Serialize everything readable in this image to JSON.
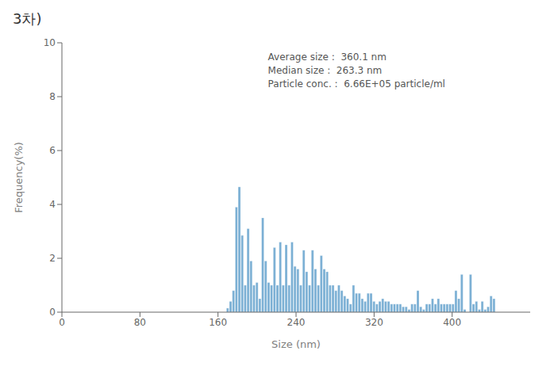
{
  "chart_data": {
    "type": "bar",
    "title": "3차)",
    "xlabel": "Size (nm)",
    "ylabel": "Frequency(%)",
    "annotation": "Average size :  360.1 nm\nMedian size :  263.3 nm\nParticle conc. :  6.66E+05 particle/ml",
    "color": "#7aafd4",
    "grid": false,
    "xlim": [
      0,
      480
    ],
    "ylim": [
      0,
      10
    ],
    "xticks": [
      0,
      80,
      160,
      240,
      320,
      400
    ],
    "yticks": [
      0,
      2,
      4,
      6,
      8,
      10
    ],
    "x": [
      170,
      173,
      176,
      179,
      182,
      185,
      188,
      191,
      194,
      197,
      200,
      203,
      206,
      209,
      212,
      215,
      218,
      221,
      224,
      227,
      230,
      233,
      236,
      239,
      242,
      245,
      248,
      251,
      254,
      257,
      260,
      263,
      266,
      269,
      272,
      275,
      278,
      281,
      284,
      287,
      290,
      293,
      296,
      299,
      302,
      305,
      308,
      311,
      314,
      317,
      320,
      323,
      326,
      329,
      332,
      335,
      338,
      341,
      344,
      347,
      350,
      353,
      356,
      359,
      362,
      365,
      368,
      371,
      374,
      377,
      380,
      383,
      386,
      389,
      392,
      395,
      398,
      401,
      404,
      407,
      410,
      413,
      416,
      419,
      422,
      425,
      428,
      431,
      434,
      437,
      440,
      443,
      446,
      449,
      452,
      455,
      458,
      461,
      464,
      467
    ],
    "values": [
      0.15,
      0.4,
      0.8,
      3.9,
      4.65,
      2.85,
      1.0,
      3.1,
      1.9,
      1.0,
      1.1,
      0.5,
      3.5,
      1.9,
      1.1,
      1.0,
      2.4,
      1.0,
      2.6,
      1.0,
      2.5,
      1.0,
      2.6,
      1.7,
      1.6,
      1.0,
      2.3,
      1.5,
      1.0,
      2.3,
      1.6,
      1.0,
      2.1,
      1.6,
      1.5,
      1.0,
      1.0,
      0.8,
      1.0,
      0.8,
      0.6,
      0.5,
      0.3,
      1.0,
      0.7,
      0.7,
      0.5,
      0.4,
      0.7,
      0.7,
      0.4,
      0.3,
      0.4,
      0.5,
      0.4,
      0.4,
      0.3,
      0.3,
      0.3,
      0.3,
      0.2,
      0.2,
      0.1,
      0.3,
      0.3,
      0.8,
      0.2,
      0.1,
      0.3,
      0.3,
      0.5,
      0.3,
      0.5,
      0.3,
      0.3,
      0.3,
      0.3,
      0.3,
      0.8,
      0.5,
      1.4,
      0.1,
      0.0,
      1.4,
      0.3,
      0.4,
      0.1,
      0.4,
      0.1,
      0.2,
      0.6,
      0.5,
      0.0,
      0.0,
      0.0,
      0.0,
      0.0,
      0.0,
      0.0,
      0.0
    ]
  }
}
